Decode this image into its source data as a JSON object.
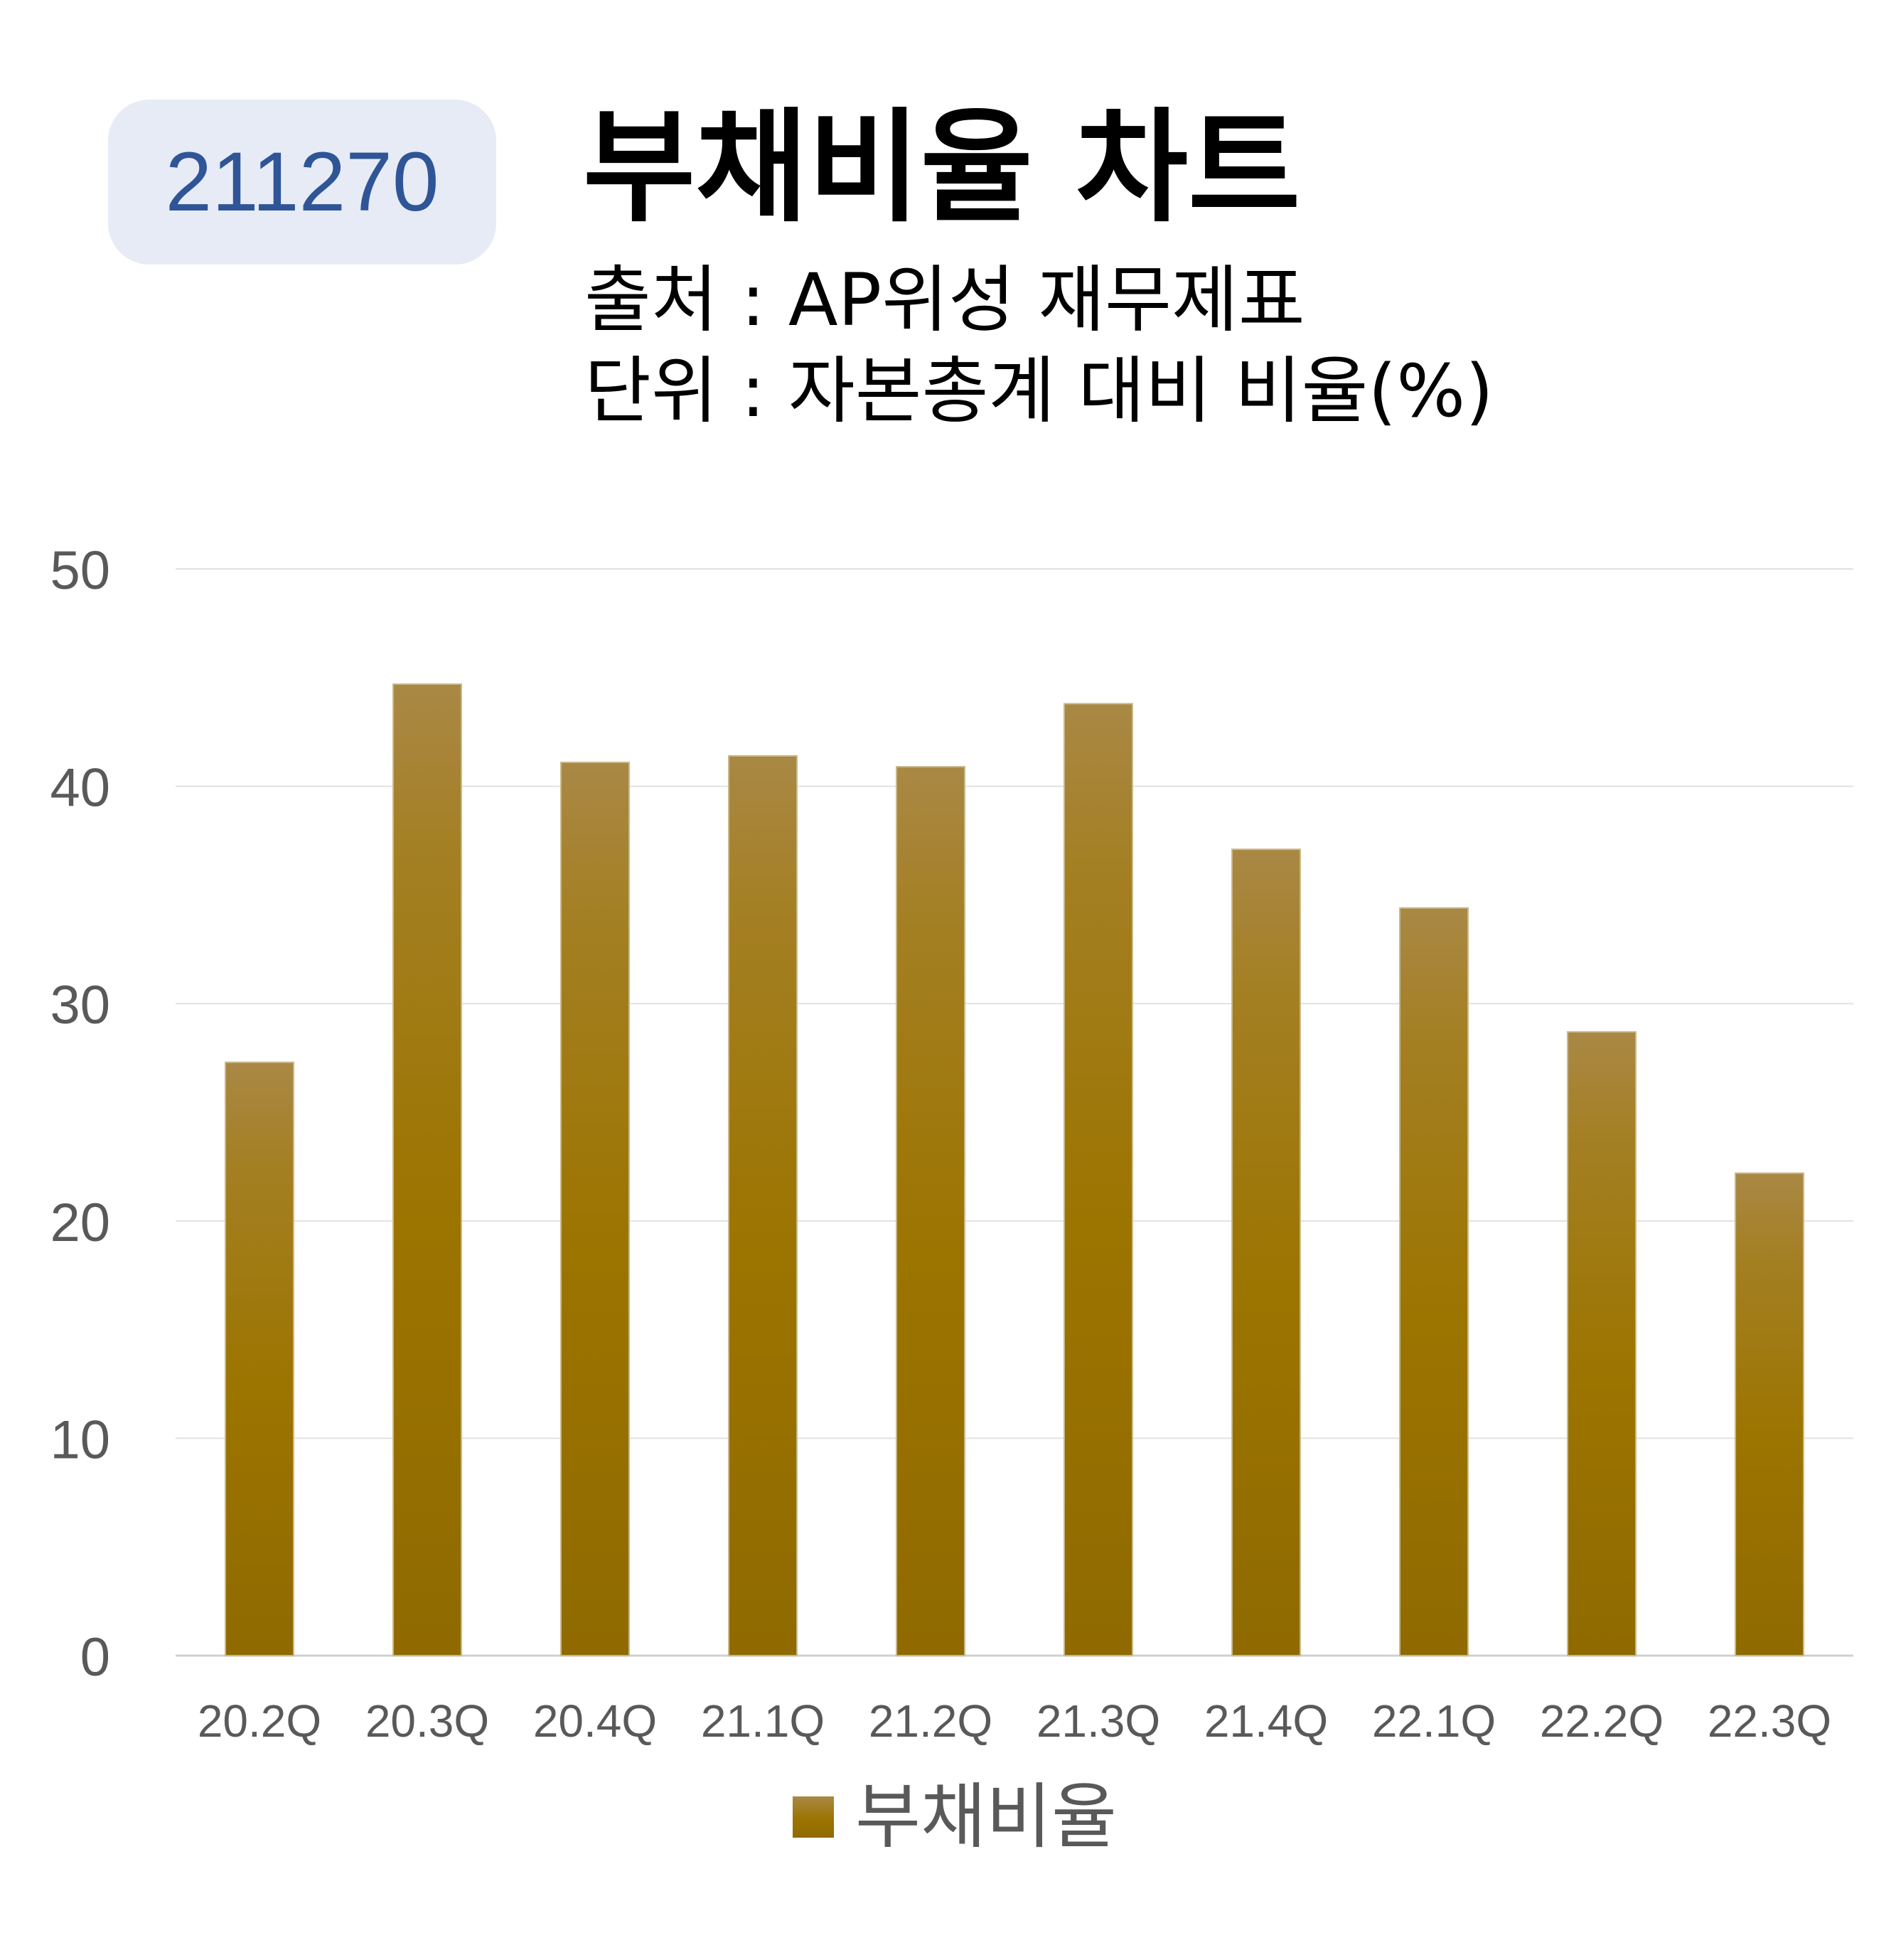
{
  "header": {
    "code": "211270",
    "title": "부채비율 차트",
    "source": "출처 : AP위성 재무제표",
    "unit": "단위 : 자본총계 대비 비율(%)"
  },
  "chart_data": {
    "type": "bar",
    "title": "부채비율 차트",
    "categories": [
      "20.2Q",
      "20.3Q",
      "20.4Q",
      "21.1Q",
      "21.2Q",
      "21.3Q",
      "21.4Q",
      "22.1Q",
      "22.2Q",
      "22.3Q"
    ],
    "series": [
      {
        "name": "부채비율",
        "values": [
          27.3,
          44.7,
          41.1,
          41.4,
          40.9,
          43.8,
          37.1,
          34.4,
          28.7,
          22.2
        ],
        "color": "#9c7400"
      }
    ],
    "yticks": [
      "0",
      "10",
      "20",
      "30",
      "40",
      "50"
    ],
    "ylim": [
      0,
      50
    ],
    "grid": true,
    "legend_position": "bottom"
  }
}
